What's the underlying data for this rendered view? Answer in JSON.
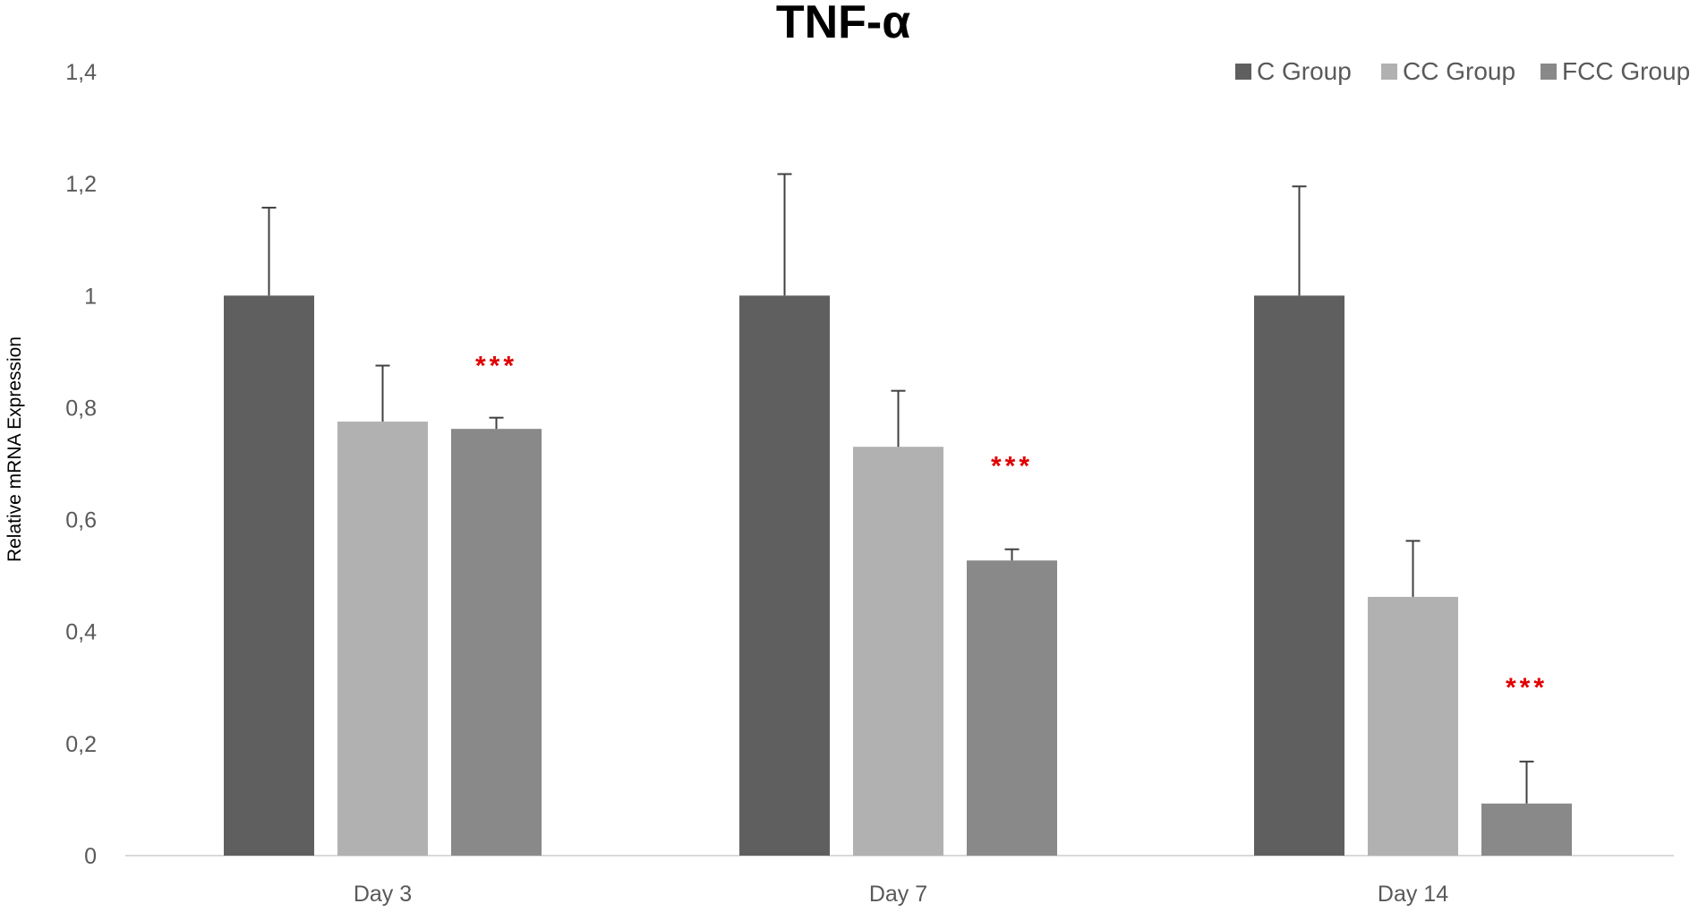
{
  "chart_data": {
    "type": "bar",
    "title": "TNF-α",
    "xlabel": "",
    "ylabel": "Relative mRNA Expression",
    "ylim": [
      0,
      1.4
    ],
    "yticks": [
      0,
      0.2,
      0.4,
      0.6,
      0.8,
      1,
      1.2,
      1.4
    ],
    "ytick_labels": [
      "0",
      "0,2",
      "0,4",
      "0,6",
      "0,8",
      "1",
      "1,2",
      "1,4"
    ],
    "categories": [
      "Day 3",
      "Day 7",
      "Day 14"
    ],
    "series": [
      {
        "name": "C Group",
        "color": "#5f5f5f",
        "values": [
          1.0,
          1.0,
          1.0
        ],
        "errors": [
          0.157,
          0.217,
          0.195
        ]
      },
      {
        "name": "CC Group",
        "color": "#b1b1b1",
        "values": [
          0.775,
          0.73,
          0.462
        ],
        "errors": [
          0.1,
          0.1,
          0.1
        ]
      },
      {
        "name": "FCC Group",
        "color": "#898989",
        "values": [
          0.762,
          0.527,
          0.093
        ],
        "errors": [
          0.02,
          0.02,
          0.075
        ]
      }
    ],
    "annotations": [
      {
        "category": "Day 3",
        "series": "FCC Group",
        "text": "***",
        "color": "#e00000"
      },
      {
        "category": "Day 7",
        "series": "FCC Group",
        "text": "***",
        "color": "#e00000"
      },
      {
        "category": "Day 14",
        "series": "FCC Group",
        "text": "***",
        "color": "#e00000"
      }
    ],
    "legend_position": "top-right",
    "grid": false
  }
}
